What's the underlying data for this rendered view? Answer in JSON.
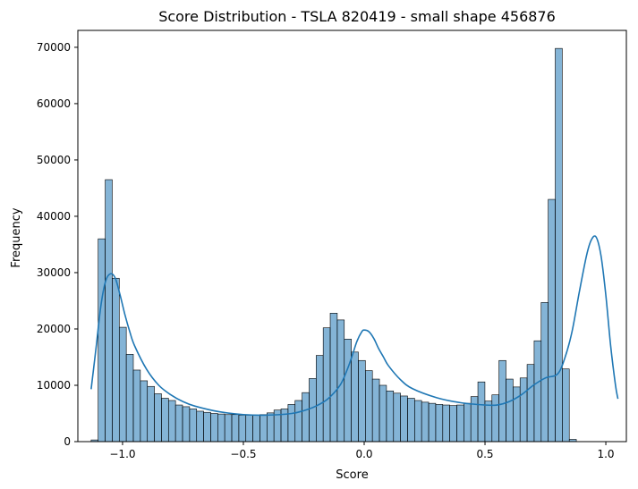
{
  "chart_data": {
    "type": "bar",
    "title": "Score Distribution - TSLA 820419 - small shape 456876",
    "xlabel": "Score",
    "ylabel": "Frequency",
    "xlim": [
      -1.185,
      1.085
    ],
    "ylim": [
      0,
      73000
    ],
    "x_ticks": [
      {
        "value": -1.0,
        "label": "−1.0"
      },
      {
        "value": -0.5,
        "label": "−0.5"
      },
      {
        "value": 0.0,
        "label": "0.0"
      },
      {
        "value": 0.5,
        "label": "0.5"
      },
      {
        "value": 1.0,
        "label": "1.0"
      }
    ],
    "y_ticks": [
      {
        "value": 0,
        "label": "0"
      },
      {
        "value": 10000,
        "label": "10000"
      },
      {
        "value": 20000,
        "label": "20000"
      },
      {
        "value": 30000,
        "label": "30000"
      },
      {
        "value": 40000,
        "label": "40000"
      },
      {
        "value": 50000,
        "label": "50000"
      },
      {
        "value": 60000,
        "label": "60000"
      },
      {
        "value": 70000,
        "label": "70000"
      }
    ],
    "grid": false,
    "bin_start": -1.13,
    "bin_width": 0.0291,
    "values": [
      300,
      36000,
      46500,
      29000,
      20300,
      15500,
      12700,
      10800,
      9800,
      8500,
      7700,
      7300,
      6500,
      6200,
      5800,
      5400,
      5200,
      5000,
      4900,
      4800,
      4800,
      4700,
      4700,
      4700,
      4800,
      5100,
      5600,
      5800,
      6600,
      7300,
      8700,
      11200,
      15300,
      20200,
      22800,
      21600,
      18200,
      15900,
      14400,
      12600,
      11100,
      10000,
      9000,
      8600,
      8100,
      7700,
      7300,
      7000,
      6800,
      6600,
      6500,
      6400,
      6500,
      6800,
      8000,
      10600,
      7200,
      8300,
      14400,
      11100,
      9700,
      11300,
      13700,
      17900,
      24700,
      43000,
      69800,
      12900,
      400
    ],
    "kde_x": [
      -1.13,
      -1.11,
      -1.09,
      -1.07,
      -1.05,
      -1.03,
      -1.01,
      -0.99,
      -0.97,
      -0.95,
      -0.9,
      -0.85,
      -0.8,
      -0.75,
      -0.7,
      -0.6,
      -0.5,
      -0.4,
      -0.3,
      -0.25,
      -0.2,
      -0.15,
      -0.1,
      -0.07,
      -0.05,
      -0.03,
      -0.01,
      0.0,
      0.02,
      0.04,
      0.06,
      0.08,
      0.1,
      0.15,
      0.2,
      0.3,
      0.4,
      0.5,
      0.55,
      0.6,
      0.65,
      0.7,
      0.75,
      0.8,
      0.83,
      0.86,
      0.89,
      0.92,
      0.94,
      0.96,
      0.98,
      1.0,
      1.02,
      1.04,
      1.05
    ],
    "kde_y": [
      9300,
      16500,
      24000,
      28500,
      29800,
      29000,
      26000,
      22500,
      19500,
      17000,
      12800,
      10000,
      8300,
      7100,
      6300,
      5300,
      4800,
      4700,
      5000,
      5500,
      6300,
      7600,
      10000,
      12800,
      15200,
      17800,
      19500,
      19800,
      19500,
      18300,
      16500,
      15000,
      13500,
      11000,
      9400,
      7800,
      6900,
      6500,
      6500,
      7100,
      8300,
      10000,
      11300,
      12000,
      14800,
      19500,
      26500,
      33000,
      35800,
      36300,
      33000,
      26000,
      17000,
      10000,
      7600
    ]
  }
}
